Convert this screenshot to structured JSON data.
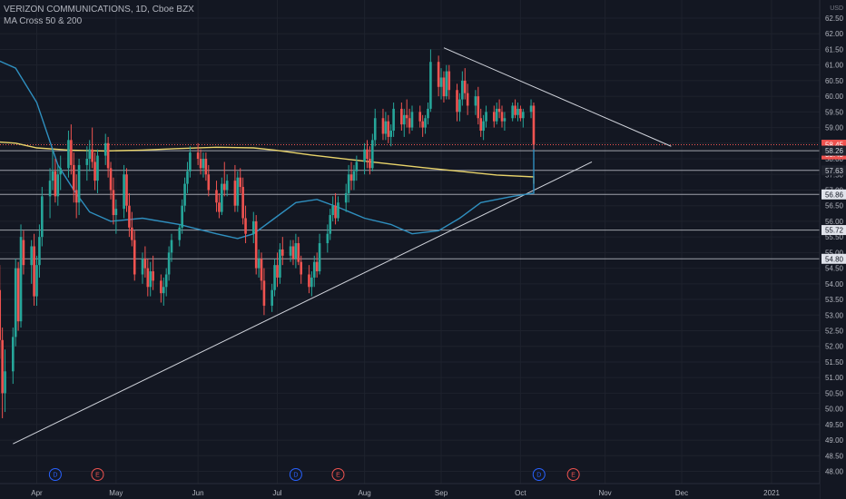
{
  "legend": {
    "title": "VERIZON COMMUNICATIONS, 1D, Cboe BZX",
    "indicator": "MA Cross 50 & 200"
  },
  "colors": {
    "background": "#131722",
    "up": "#26a69a",
    "down": "#ef5350",
    "ma50": "#2f8fbf",
    "ma200": "#e8d36a",
    "trendline": "#d1d4dc",
    "dividend": "#2962ff",
    "earnings": "#ef5350"
  },
  "chart_data": {
    "type": "candlestick",
    "xlabel": "",
    "ylabel": "",
    "y_unit": "USD",
    "ylim": [
      47.8,
      62.9
    ],
    "x_months": [
      {
        "label": "Apr",
        "date": "2020-04-01"
      },
      {
        "label": "May",
        "date": "2020-05-01"
      },
      {
        "label": "Jun",
        "date": "2020-06-01"
      },
      {
        "label": "Jul",
        "date": "2020-07-01"
      },
      {
        "label": "Aug",
        "date": "2020-08-03"
      },
      {
        "label": "Sep",
        "date": "2020-09-01"
      },
      {
        "label": "Oct",
        "date": "2020-10-01"
      },
      {
        "label": "Nov",
        "date": "2020-11-02"
      },
      {
        "label": "Dec",
        "date": "2020-12-01"
      },
      {
        "label": "2021",
        "date": "2021-01-04"
      }
    ],
    "y_ticks": [
      48.0,
      48.5,
      49.0,
      49.5,
      50.0,
      50.5,
      51.0,
      51.5,
      52.0,
      52.5,
      53.0,
      53.5,
      54.0,
      54.5,
      55.0,
      55.5,
      56.0,
      56.5,
      57.0,
      57.5,
      58.0,
      58.5,
      59.0,
      59.5,
      60.0,
      60.5,
      61.0,
      61.5,
      62.0,
      62.5
    ],
    "price_levels": [
      {
        "value": 58.45,
        "label": "58.45",
        "style": "dashed-red",
        "badge": "red"
      },
      {
        "value": 58.43,
        "label": "58.43",
        "style": "none",
        "badge": "red"
      },
      {
        "value": 58.26,
        "label": "58.26",
        "style": "solid-white",
        "badge": "dark"
      },
      {
        "value": 57.63,
        "label": "57.63",
        "style": "solid-white",
        "badge": "dark"
      },
      {
        "value": 56.86,
        "label": "56.86",
        "style": "solid-white",
        "badge": "white"
      },
      {
        "value": 55.72,
        "label": "55.72",
        "style": "solid-white",
        "badge": "white"
      },
      {
        "value": 54.8,
        "label": "54.80",
        "style": "solid-white",
        "badge": "white"
      }
    ],
    "trendlines": [
      {
        "name": "support",
        "from": {
          "date": "2020-03-23",
          "value": 48.88
        },
        "to": {
          "date": "2020-10-28",
          "value": 57.9
        }
      },
      {
        "name": "resistance",
        "from": {
          "date": "2020-09-02",
          "value": 61.55
        },
        "to": {
          "date": "2020-11-27",
          "value": 58.4
        }
      }
    ],
    "events": [
      {
        "type": "D",
        "date": "2020-04-08"
      },
      {
        "type": "E",
        "date": "2020-04-24"
      },
      {
        "type": "D",
        "date": "2020-07-08"
      },
      {
        "type": "E",
        "date": "2020-07-24"
      },
      {
        "type": "D",
        "date": "2020-10-08"
      },
      {
        "type": "E",
        "date": "2020-10-21"
      }
    ],
    "ma50": [
      [
        0,
        61.2
      ],
      [
        6,
        60.9
      ],
      [
        12,
        59.8
      ],
      [
        18,
        57.8
      ],
      [
        22,
        57.0
      ],
      [
        26,
        56.3
      ],
      [
        32,
        56.0
      ],
      [
        40,
        56.1
      ],
      [
        50,
        55.9
      ],
      [
        60,
        55.6
      ],
      [
        66,
        55.45
      ],
      [
        70,
        55.6
      ],
      [
        76,
        56.1
      ],
      [
        82,
        56.6
      ],
      [
        88,
        56.7
      ],
      [
        94,
        56.45
      ],
      [
        100,
        56.1
      ],
      [
        108,
        55.9
      ],
      [
        114,
        55.6
      ],
      [
        120,
        55.7
      ],
      [
        126,
        56.1
      ],
      [
        132,
        56.6
      ],
      [
        140,
        56.8
      ],
      [
        148,
        56.9
      ],
      [
        156,
        57.1
      ],
      [
        162,
        57.6
      ],
      [
        168,
        58.1
      ],
      [
        174,
        58.6
      ],
      [
        180,
        59.0
      ],
      [
        186,
        59.25
      ],
      [
        190,
        59.4
      ],
      [
        194,
        59.55
      ],
      [
        198,
        59.5
      ]
    ],
    "ma200": [
      [
        0,
        58.55
      ],
      [
        6,
        58.5
      ],
      [
        12,
        58.35
      ],
      [
        20,
        58.28
      ],
      [
        30,
        58.25
      ],
      [
        40,
        58.28
      ],
      [
        50,
        58.33
      ],
      [
        60,
        58.37
      ],
      [
        70,
        58.35
      ],
      [
        76,
        58.28
      ],
      [
        86,
        58.12
      ],
      [
        96,
        57.98
      ],
      [
        106,
        57.85
      ],
      [
        116,
        57.72
      ],
      [
        126,
        57.6
      ],
      [
        136,
        57.48
      ],
      [
        146,
        57.42
      ],
      [
        156,
        57.42
      ],
      [
        166,
        57.42
      ],
      [
        176,
        57.44
      ],
      [
        186,
        57.4
      ],
      [
        196,
        57.26
      ],
      [
        200,
        57.2
      ]
    ],
    "candles_start_date": "2020-03-16",
    "candles": [
      [
        53.5,
        54.8,
        50.9,
        51.3
      ],
      [
        51.3,
        54.7,
        51.0,
        53.8
      ],
      [
        53.8,
        54.6,
        51.6,
        52.2
      ],
      [
        52.2,
        52.6,
        49.7,
        50.5
      ],
      [
        50.5,
        51.9,
        49.9,
        51.2
      ],
      [
        51.2,
        52.6,
        50.8,
        52.3
      ],
      [
        52.3,
        54.8,
        52.0,
        54.5
      ],
      [
        54.5,
        54.7,
        52.5,
        52.8
      ],
      [
        52.8,
        55.9,
        52.6,
        55.5
      ],
      [
        55.4,
        55.7,
        54.3,
        54.6
      ],
      [
        54.6,
        55.4,
        54.0,
        55.2
      ],
      [
        55.2,
        55.6,
        53.3,
        53.6
      ],
      [
        53.6,
        54.9,
        53.3,
        54.6
      ],
      [
        54.6,
        55.9,
        54.2,
        55.5
      ],
      [
        55.5,
        57.1,
        55.2,
        56.8
      ],
      [
        56.8,
        57.7,
        56.1,
        57.3
      ],
      [
        57.3,
        58.3,
        57.0,
        57.6
      ],
      [
        57.6,
        58.0,
        56.6,
        56.8
      ],
      [
        56.8,
        57.8,
        56.5,
        57.5
      ],
      [
        57.5,
        58.1,
        57.0,
        57.7
      ],
      [
        57.7,
        58.9,
        57.4,
        58.6
      ],
      [
        58.6,
        59.1,
        57.5,
        57.8
      ],
      [
        57.8,
        58.2,
        56.6,
        57.0
      ],
      [
        57.0,
        57.5,
        56.1,
        56.6
      ],
      [
        56.6,
        58.0,
        56.2,
        57.8
      ],
      [
        57.8,
        58.4,
        57.3,
        58.0
      ],
      [
        58.0,
        58.6,
        57.6,
        58.3
      ],
      [
        58.3,
        59.0,
        57.7,
        57.9
      ],
      [
        57.9,
        58.2,
        57.0,
        57.3
      ],
      [
        57.3,
        58.3,
        56.9,
        58.1
      ],
      [
        58.1,
        58.8,
        57.8,
        58.5
      ],
      [
        58.5,
        58.7,
        57.4,
        57.7
      ],
      [
        57.7,
        57.9,
        56.7,
        57.0
      ],
      [
        57.0,
        57.4,
        55.9,
        56.2
      ],
      [
        56.2,
        56.7,
        55.6,
        56.4
      ],
      [
        56.4,
        57.8,
        56.1,
        57.5
      ],
      [
        57.5,
        57.7,
        56.3,
        56.5
      ],
      [
        56.5,
        56.9,
        55.5,
        55.8
      ],
      [
        55.8,
        56.3,
        55.2,
        55.4
      ],
      [
        55.4,
        55.7,
        54.1,
        54.3
      ],
      [
        54.3,
        55.0,
        54.0,
        54.8
      ],
      [
        54.8,
        55.2,
        54.2,
        54.5
      ],
      [
        54.5,
        54.8,
        53.6,
        53.9
      ],
      [
        53.9,
        54.7,
        53.6,
        54.4
      ],
      [
        54.4,
        54.9,
        53.8,
        54.1
      ],
      [
        54.1,
        54.3,
        53.4,
        53.7
      ],
      [
        53.7,
        54.2,
        53.3,
        53.9
      ],
      [
        53.9,
        54.5,
        53.6,
        54.3
      ],
      [
        54.3,
        55.2,
        54.1,
        55.0
      ],
      [
        55.0,
        55.6,
        54.7,
        55.4
      ],
      [
        55.4,
        55.9,
        55.2,
        55.8
      ],
      [
        55.8,
        56.7,
        55.6,
        56.5
      ],
      [
        56.5,
        57.4,
        56.3,
        57.2
      ],
      [
        57.2,
        57.9,
        56.9,
        57.6
      ],
      [
        57.6,
        58.4,
        57.4,
        58.2
      ],
      [
        58.2,
        58.5,
        57.8,
        58.0
      ],
      [
        58.0,
        58.3,
        57.5,
        57.7
      ],
      [
        57.7,
        58.2,
        57.4,
        58.0
      ],
      [
        58.0,
        58.2,
        57.3,
        57.5
      ],
      [
        57.5,
        57.8,
        56.8,
        57.0
      ],
      [
        57.0,
        57.3,
        56.3,
        56.6
      ],
      [
        56.6,
        56.9,
        56.1,
        56.3
      ],
      [
        56.3,
        57.4,
        56.2,
        57.2
      ],
      [
        57.2,
        57.9,
        56.8,
        57.0
      ],
      [
        57.0,
        57.5,
        56.8,
        57.3
      ],
      [
        57.3,
        57.8,
        56.3,
        56.5
      ],
      [
        56.5,
        57.6,
        56.3,
        57.4
      ],
      [
        57.4,
        57.7,
        56.9,
        57.1
      ],
      [
        57.1,
        57.4,
        55.9,
        56.1
      ],
      [
        56.1,
        56.5,
        55.3,
        55.6
      ],
      [
        55.6,
        56.3,
        55.3,
        56.0
      ],
      [
        56.0,
        56.2,
        54.3,
        54.5
      ],
      [
        54.5,
        55.1,
        54.2,
        54.8
      ],
      [
        54.8,
        55.0,
        53.8,
        54.1
      ],
      [
        54.1,
        54.5,
        53.0,
        53.3
      ],
      [
        53.3,
        54.0,
        53.1,
        53.8
      ],
      [
        53.8,
        54.8,
        53.6,
        54.6
      ],
      [
        54.6,
        55.0,
        53.9,
        54.2
      ],
      [
        54.2,
        55.3,
        54.0,
        55.1
      ],
      [
        55.1,
        55.5,
        54.6,
        54.9
      ],
      [
        54.9,
        55.4,
        54.7,
        55.2
      ],
      [
        55.2,
        55.4,
        54.6,
        54.8
      ],
      [
        54.8,
        55.6,
        54.5,
        55.3
      ],
      [
        55.3,
        55.5,
        54.6,
        54.7
      ],
      [
        54.7,
        54.9,
        54.0,
        54.3
      ],
      [
        54.3,
        54.6,
        53.7,
        53.9
      ],
      [
        53.9,
        54.4,
        53.6,
        54.2
      ],
      [
        54.2,
        54.9,
        53.9,
        54.7
      ],
      [
        54.7,
        55.0,
        54.2,
        54.4
      ],
      [
        54.4,
        55.6,
        54.3,
        55.3
      ],
      [
        55.3,
        55.9,
        55.0,
        55.6
      ],
      [
        55.6,
        56.4,
        55.4,
        56.2
      ],
      [
        56.2,
        56.8,
        56.0,
        56.5
      ],
      [
        56.5,
        56.9,
        55.9,
        56.1
      ],
      [
        56.1,
        56.8,
        56.0,
        56.6
      ],
      [
        56.6,
        57.2,
        56.3,
        56.9
      ],
      [
        56.9,
        57.8,
        56.6,
        57.5
      ],
      [
        57.5,
        57.9,
        57.0,
        57.3
      ],
      [
        57.3,
        57.8,
        57.0,
        57.6
      ],
      [
        57.6,
        58.1,
        57.3,
        57.9
      ],
      [
        57.9,
        58.5,
        57.5,
        58.3
      ],
      [
        58.3,
        58.6,
        57.7,
        58.0
      ],
      [
        58.0,
        58.4,
        57.5,
        57.7
      ],
      [
        57.7,
        58.8,
        57.6,
        58.6
      ],
      [
        58.6,
        59.6,
        58.4,
        59.3
      ],
      [
        59.3,
        59.6,
        58.6,
        58.8
      ],
      [
        58.8,
        59.5,
        58.6,
        59.2
      ],
      [
        59.2,
        59.4,
        58.5,
        58.7
      ],
      [
        58.7,
        59.1,
        58.4,
        58.9
      ],
      [
        58.9,
        59.8,
        58.7,
        59.6
      ],
      [
        59.6,
        59.8,
        58.9,
        59.1
      ],
      [
        59.1,
        59.6,
        58.7,
        59.4
      ],
      [
        59.4,
        59.9,
        59.0,
        59.3
      ],
      [
        59.3,
        59.6,
        58.8,
        59.0
      ],
      [
        59.0,
        59.7,
        58.9,
        59.5
      ],
      [
        59.5,
        59.7,
        59.0,
        59.2
      ],
      [
        59.2,
        59.4,
        58.7,
        59.0
      ],
      [
        59.0,
        59.4,
        58.8,
        59.3
      ],
      [
        59.3,
        59.8,
        59.1,
        59.6
      ],
      [
        59.6,
        61.5,
        59.5,
        61.1
      ],
      [
        61.1,
        61.3,
        60.0,
        60.3
      ],
      [
        60.3,
        60.9,
        59.9,
        60.6
      ],
      [
        60.6,
        60.8,
        59.8,
        60.0
      ],
      [
        60.0,
        61.0,
        59.9,
        60.8
      ],
      [
        60.8,
        61.0,
        59.9,
        60.2
      ],
      [
        60.2,
        60.4,
        59.2,
        59.5
      ],
      [
        59.5,
        60.1,
        59.2,
        59.9
      ],
      [
        59.9,
        60.8,
        59.7,
        60.5
      ],
      [
        60.5,
        60.9,
        59.9,
        60.1
      ],
      [
        60.1,
        60.4,
        59.4,
        59.7
      ],
      [
        59.7,
        60.2,
        59.4,
        60.0
      ],
      [
        60.0,
        60.3,
        59.1,
        59.3
      ],
      [
        59.3,
        59.6,
        58.7,
        58.9
      ],
      [
        58.9,
        59.4,
        58.6,
        59.2
      ],
      [
        59.2,
        59.7,
        59.0,
        59.5
      ],
      [
        59.5,
        59.7,
        59.0,
        59.2
      ],
      [
        59.2,
        59.8,
        59.1,
        59.6
      ],
      [
        59.6,
        59.9,
        59.3,
        59.5
      ],
      [
        59.5,
        59.7,
        59.0,
        59.2
      ],
      [
        59.2,
        59.5,
        58.9,
        59.3
      ],
      [
        59.3,
        59.8,
        59.2,
        59.7
      ],
      [
        59.7,
        59.9,
        59.3,
        59.4
      ],
      [
        59.4,
        59.8,
        59.2,
        59.6
      ],
      [
        59.6,
        59.7,
        59.2,
        59.3
      ],
      [
        59.3,
        59.6,
        59.0,
        59.5
      ],
      [
        59.5,
        59.9,
        59.3,
        59.7
      ],
      [
        59.7,
        59.8,
        58.3,
        58.45
      ]
    ]
  }
}
